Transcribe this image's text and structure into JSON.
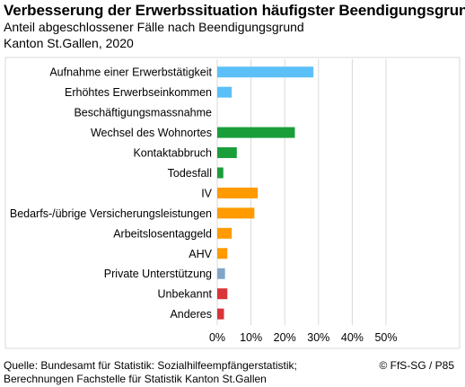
{
  "chart_data": {
    "type": "bar",
    "orientation": "horizontal",
    "title": "Verbesserung der Erwerbssituation häufigster Beendigungsgrund",
    "subtitle": "Anteil abgeschlossener Fälle nach Beendigungsgrund",
    "subtitle2": "Kanton St.Gallen, 2020",
    "categories": [
      "Aufnahme einer Erwerbstätigkeit",
      "Erhöhtes Erwerbseinkommen",
      "Beschäftigungsmassnahme",
      "Wechsel des Wohnortes",
      "Kontaktabbruch",
      "Todesfall",
      "IV",
      "Bedarfs-/übrige Versicherungsleistungen",
      "Arbeitslosentaggeld",
      "AHV",
      "Private Unterstützung",
      "Unbekannt",
      "Anderes"
    ],
    "values": [
      28.5,
      4.3,
      0.0,
      23.0,
      5.8,
      1.8,
      12.0,
      11.0,
      4.3,
      3.0,
      2.3,
      3.0,
      2.0
    ],
    "colors": [
      "#5bc0f8",
      "#5bc0f8",
      "#5bc0f8",
      "#1a9e3a",
      "#1a9e3a",
      "#1a9e3a",
      "#ff9a00",
      "#ff9a00",
      "#ff9a00",
      "#ff9a00",
      "#7fa6c8",
      "#d9343a",
      "#d9343a"
    ],
    "xlim": [
      0,
      50
    ],
    "xticks": [
      0,
      10,
      20,
      30,
      40,
      50
    ],
    "xtick_labels": [
      "0%",
      "10%",
      "20%",
      "30%",
      "40%",
      "50%"
    ],
    "grid": "vertical",
    "legend": "none"
  },
  "footer": {
    "source_line1": "Quelle: Bundesamt für Statistik: Sozialhilfeempfängerstatistik;",
    "source_line2": "Berechnungen Fachstelle für Statistik Kanton St.Gallen",
    "copyright": "© FfS-SG / P85"
  }
}
